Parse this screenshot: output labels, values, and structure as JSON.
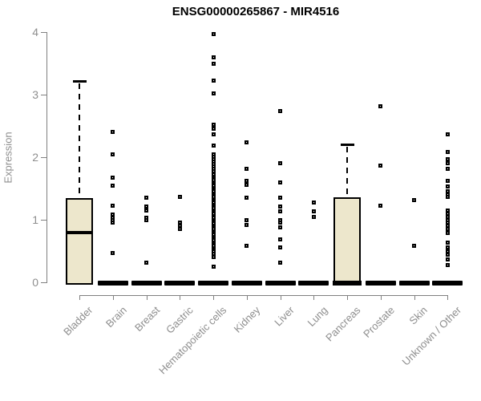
{
  "chart_data": {
    "type": "boxplot",
    "title": "ENSG00000265867 - MIR4516",
    "xlabel": "",
    "ylabel": "Expression",
    "ylim": [
      0,
      4
    ],
    "yticks": [
      0,
      1,
      2,
      3,
      4
    ],
    "grid": false,
    "legend": false,
    "colors": {
      "box_fill": "#EDE7CC",
      "box_border": "#000000",
      "axis": "#808080",
      "tick_label": "#8E8E8E",
      "title": "#000000",
      "point": "#000000",
      "background": "#FFFFFF"
    },
    "categories": [
      "Bladder",
      "Brain",
      "Breast",
      "Gastric",
      "Hematopoietic cells",
      "Kidney",
      "Liver",
      "Lung",
      "Pancreas",
      "Prostate",
      "Skin",
      "Unknown / Other"
    ],
    "series": [
      {
        "name": "Bladder",
        "box": {
          "q1": 0,
          "median": 0.8,
          "q3": 1.35,
          "whisker_high": 3.22
        },
        "points": []
      },
      {
        "name": "Brain",
        "box": null,
        "points": [
          2.4,
          2.04,
          1.67,
          1.54,
          1.23,
          1.08,
          1.03,
          0.99,
          0.95,
          0.47
        ]
      },
      {
        "name": "Breast",
        "box": null,
        "points": [
          1.35,
          1.21,
          1.15,
          1.03,
          0.99,
          0.31
        ]
      },
      {
        "name": "Gastric",
        "box": null,
        "points": [
          1.37,
          0.96,
          0.9,
          0.85
        ]
      },
      {
        "name": "Hematopoietic cells",
        "box": null,
        "points": [
          3.97,
          3.6,
          3.5,
          3.22,
          3.02,
          2.52,
          2.46,
          2.37,
          2.18,
          2.05,
          2.01,
          1.97,
          1.93,
          1.89,
          1.85,
          1.81,
          1.77,
          1.73,
          1.69,
          1.66,
          1.63,
          1.6,
          1.57,
          1.54,
          1.51,
          1.48,
          1.45,
          1.42,
          1.39,
          1.36,
          1.33,
          1.3,
          1.27,
          1.24,
          1.21,
          1.18,
          1.15,
          1.12,
          1.09,
          1.06,
          1.03,
          1.0,
          0.97,
          0.94,
          0.91,
          0.88,
          0.85,
          0.82,
          0.79,
          0.76,
          0.73,
          0.7,
          0.67,
          0.64,
          0.61,
          0.58,
          0.55,
          0.52,
          0.49,
          0.45,
          0.41,
          0.25
        ]
      },
      {
        "name": "Kidney",
        "box": null,
        "points": [
          2.24,
          1.82,
          1.62,
          1.56,
          1.35,
          0.99,
          0.92,
          0.58
        ]
      },
      {
        "name": "Liver",
        "box": null,
        "points": [
          2.74,
          1.91,
          1.59,
          1.35,
          1.21,
          1.14,
          0.99,
          0.95,
          0.88,
          0.69,
          0.56,
          0.31
        ]
      },
      {
        "name": "Lung",
        "box": null,
        "points": [
          1.27,
          1.14,
          1.05
        ]
      },
      {
        "name": "Pancreas",
        "box": {
          "q1": 0,
          "median": 0,
          "q3": 1.36,
          "whisker_high": 2.21
        },
        "points": []
      },
      {
        "name": "Prostate",
        "box": null,
        "points": [
          2.81,
          1.86,
          1.22
        ]
      },
      {
        "name": "Skin",
        "box": null,
        "points": [
          1.32,
          0.58
        ]
      },
      {
        "name": "Unknown / Other",
        "box": null,
        "points": [
          2.36,
          2.08,
          1.97,
          1.9,
          1.82,
          1.62,
          1.53,
          1.46,
          1.4,
          1.36,
          1.15,
          1.1,
          1.05,
          1.0,
          0.95,
          0.9,
          0.85,
          0.79,
          0.64,
          0.56,
          0.5,
          0.44,
          0.37,
          0.27
        ]
      }
    ]
  }
}
